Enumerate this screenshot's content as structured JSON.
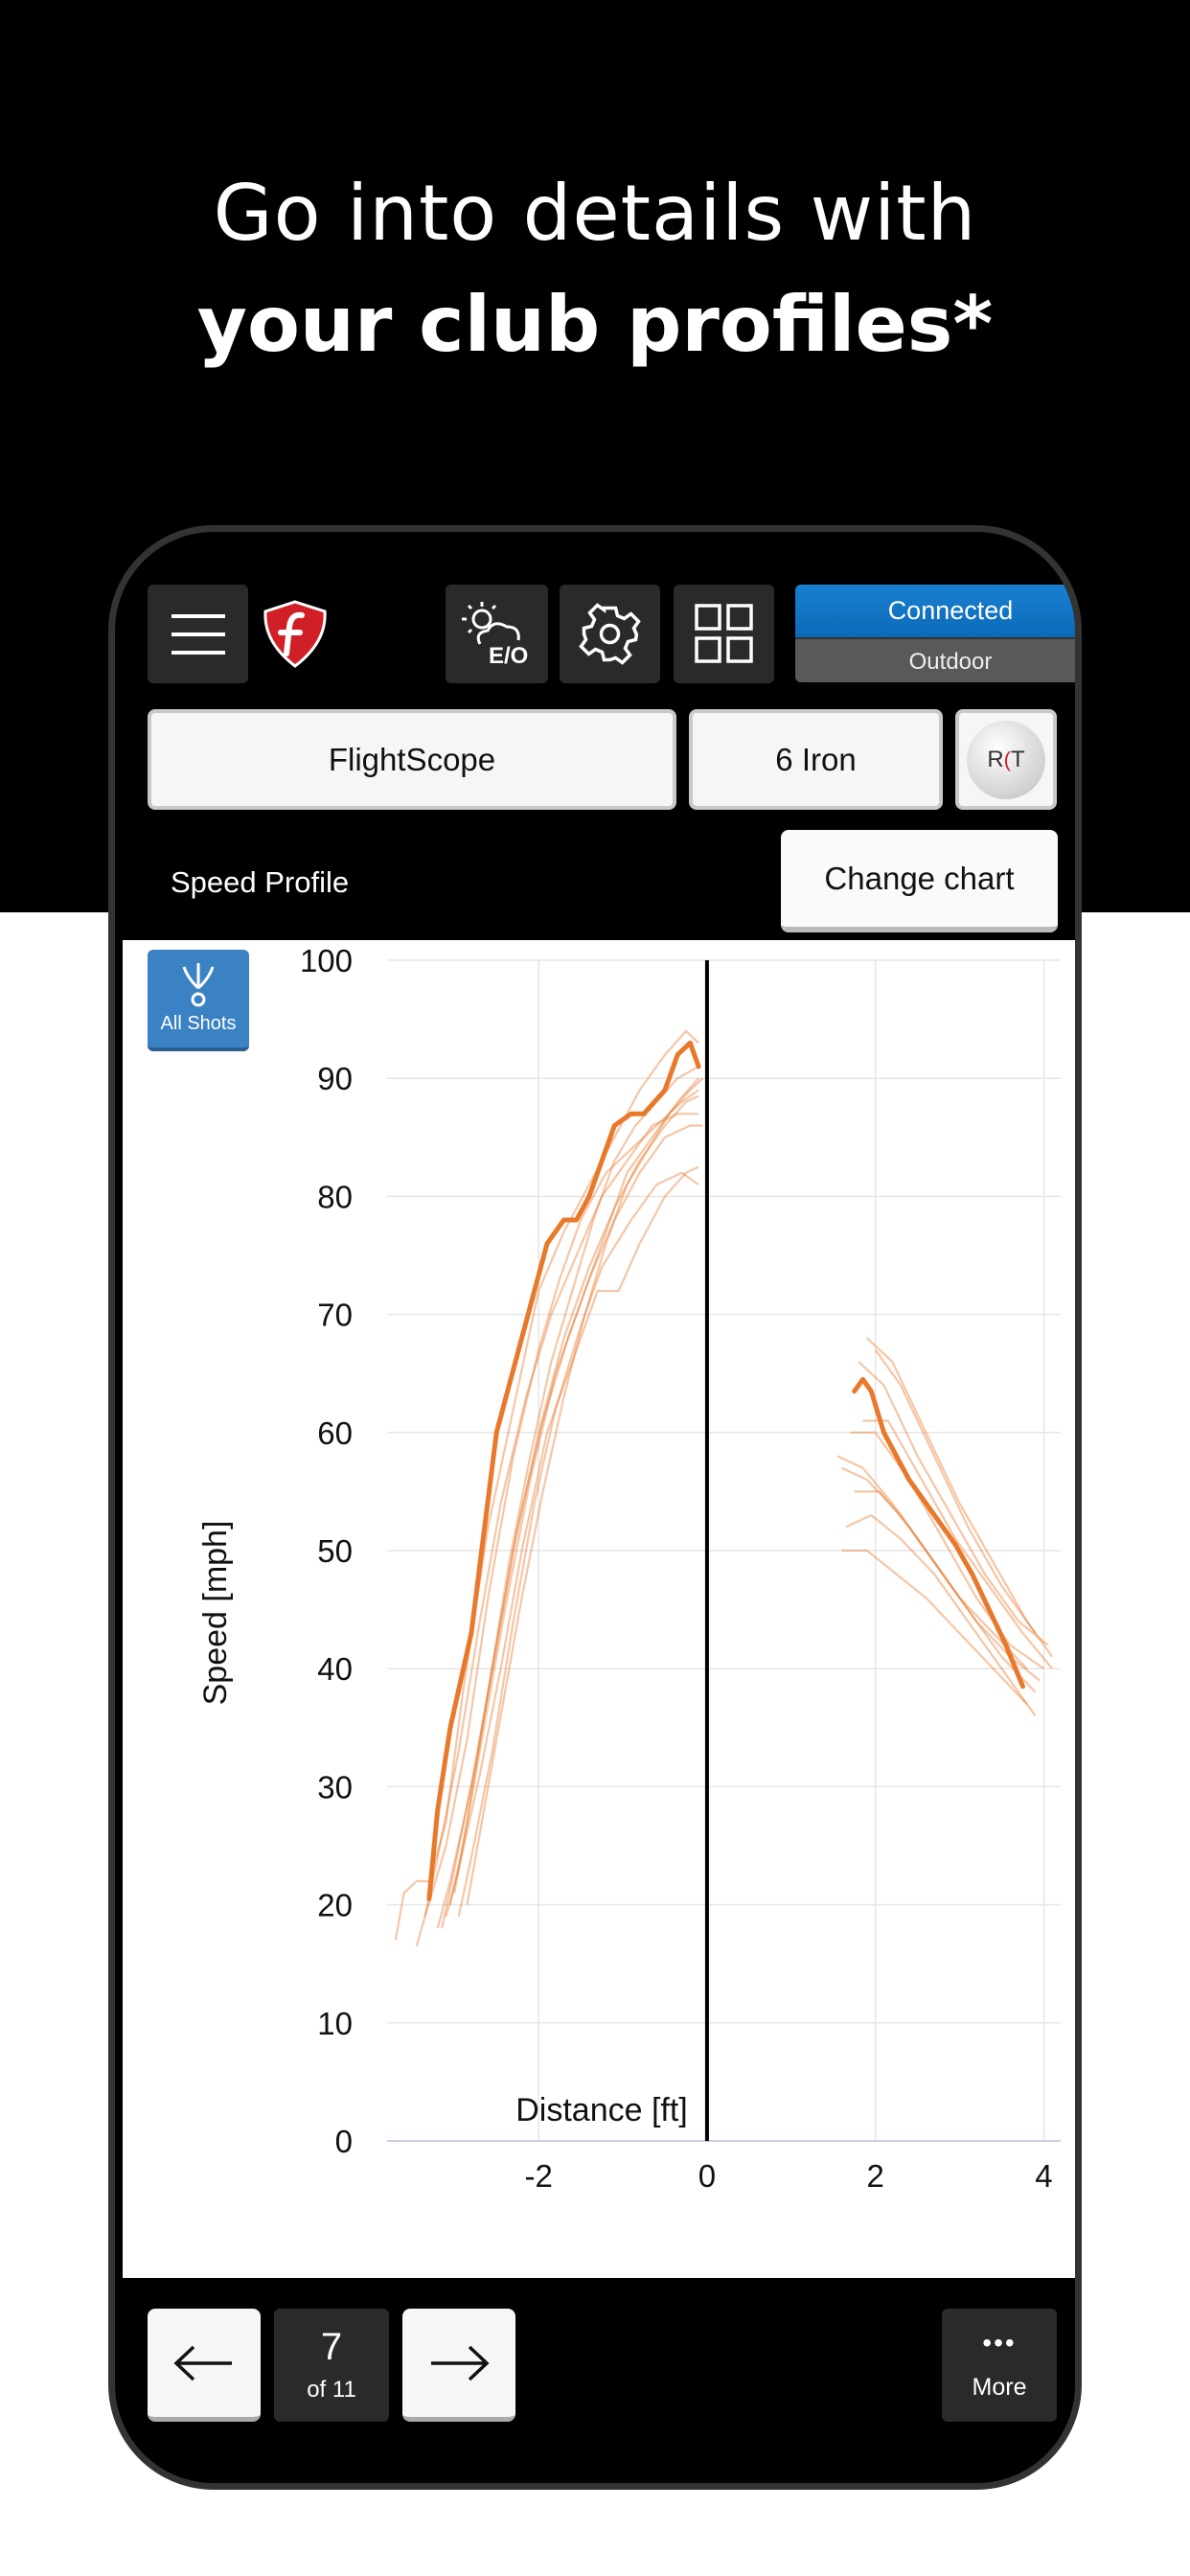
{
  "headline": {
    "line1": "Go into details with",
    "line2": "your club profiles*"
  },
  "toolbar": {
    "weather_label": "E/O",
    "connection_status": "Connected",
    "environment": "Outdoor"
  },
  "selectors": {
    "device": "FlightScope",
    "club": "6 Iron",
    "ball_label_left": "R",
    "ball_label_right": "T"
  },
  "chart_header": {
    "title": "Speed Profile",
    "change_button": "Change chart"
  },
  "filter": {
    "label": "All Shots"
  },
  "chart_data": {
    "type": "line",
    "xlabel": "Distance [ft]",
    "ylabel": "Speed [mph]",
    "xlim": [
      -3.8,
      4.2
    ],
    "ylim": [
      0,
      100
    ],
    "x_ticks": [
      -2,
      0,
      2,
      4
    ],
    "y_ticks": [
      0,
      10,
      20,
      30,
      40,
      50,
      60,
      70,
      80,
      90,
      100
    ],
    "grid": true,
    "accent_color": "#e8782a",
    "selected_shot": {
      "segments": [
        [
          [
            -3.3,
            20.5
          ],
          [
            -3.2,
            28
          ],
          [
            -3.05,
            35
          ],
          [
            -2.8,
            43
          ],
          [
            -2.5,
            60
          ],
          [
            -2.2,
            68
          ],
          [
            -1.9,
            76
          ],
          [
            -1.7,
            78
          ],
          [
            -1.55,
            78
          ],
          [
            -1.4,
            80
          ],
          [
            -1.1,
            86
          ],
          [
            -0.9,
            87
          ],
          [
            -0.75,
            87
          ],
          [
            -0.5,
            89
          ],
          [
            -0.35,
            92
          ],
          [
            -0.2,
            93
          ],
          [
            -0.1,
            91
          ]
        ],
        [
          [
            1.75,
            63.5
          ],
          [
            1.85,
            64.5
          ],
          [
            1.95,
            63.5
          ],
          [
            2.1,
            60
          ],
          [
            2.4,
            56
          ],
          [
            2.7,
            53
          ],
          [
            2.95,
            50.5
          ],
          [
            3.15,
            48
          ],
          [
            3.35,
            45
          ],
          [
            3.55,
            42
          ],
          [
            3.75,
            38.5
          ]
        ]
      ]
    },
    "other_shots": [
      {
        "segments": [
          [
            [
              -3.7,
              17
            ],
            [
              -3.6,
              21
            ],
            [
              -3.45,
              22
            ],
            [
              -3.3,
              22
            ],
            [
              -3.1,
              27
            ],
            [
              -2.9,
              38
            ],
            [
              -2.6,
              52
            ],
            [
              -2.3,
              62
            ],
            [
              -2.0,
              72
            ],
            [
              -1.7,
              77
            ],
            [
              -1.4,
              81
            ],
            [
              -1.1,
              85
            ],
            [
              -0.8,
              89
            ],
            [
              -0.5,
              92
            ],
            [
              -0.25,
              94
            ],
            [
              -0.1,
              93
            ]
          ],
          [
            [
              1.9,
              68
            ],
            [
              2.2,
              66
            ],
            [
              2.6,
              60
            ],
            [
              3.0,
              54
            ],
            [
              3.4,
              49
            ],
            [
              3.8,
              44
            ],
            [
              4.1,
              41
            ]
          ]
        ]
      },
      {
        "segments": [
          [
            [
              -3.45,
              16.5
            ],
            [
              -3.35,
              19
            ],
            [
              -3.1,
              25
            ],
            [
              -2.85,
              34
            ],
            [
              -2.6,
              46
            ],
            [
              -2.3,
              58
            ],
            [
              -2.0,
              67
            ],
            [
              -1.75,
              73
            ],
            [
              -1.5,
              78
            ],
            [
              -1.2,
              82
            ],
            [
              -0.9,
              84
            ],
            [
              -0.6,
              86
            ],
            [
              -0.3,
              88
            ],
            [
              -0.1,
              89
            ]
          ],
          [
            [
              1.6,
              57
            ],
            [
              1.9,
              56
            ],
            [
              2.3,
              53
            ],
            [
              2.7,
              49
            ],
            [
              3.1,
              45
            ],
            [
              3.5,
              41
            ],
            [
              3.9,
              38
            ]
          ]
        ]
      },
      {
        "segments": [
          [
            [
              -3.2,
              18
            ],
            [
              -3.05,
              22
            ],
            [
              -2.8,
              30
            ],
            [
              -2.55,
              40
            ],
            [
              -2.3,
              50
            ],
            [
              -2.0,
              60
            ],
            [
              -1.7,
              68
            ],
            [
              -1.4,
              74
            ],
            [
              -1.1,
              79
            ],
            [
              -0.8,
              83
            ],
            [
              -0.5,
              86
            ],
            [
              -0.25,
              88
            ],
            [
              -0.1,
              88.5
            ]
          ],
          [
            [
              1.65,
              52
            ],
            [
              1.95,
              53
            ],
            [
              2.3,
              51
            ],
            [
              2.7,
              48
            ],
            [
              3.1,
              44
            ],
            [
              3.5,
              40
            ],
            [
              3.9,
              36
            ]
          ]
        ]
      },
      {
        "segments": [
          [
            [
              -3.1,
              19
            ],
            [
              -2.95,
              23
            ],
            [
              -2.7,
              31
            ],
            [
              -2.45,
              40
            ],
            [
              -2.2,
              50
            ],
            [
              -1.9,
              60
            ],
            [
              -1.6,
              66
            ],
            [
              -1.3,
              72
            ],
            [
              -1.05,
              72
            ],
            [
              -0.8,
              76
            ],
            [
              -0.5,
              80
            ],
            [
              -0.25,
              82
            ],
            [
              -0.1,
              82.5
            ]
          ],
          [
            [
              1.8,
              66
            ],
            [
              2.1,
              64
            ],
            [
              2.5,
              58
            ],
            [
              2.9,
              53
            ],
            [
              3.3,
              48
            ],
            [
              3.7,
              44
            ],
            [
              4.05,
              42
            ]
          ]
        ]
      },
      {
        "segments": [
          [
            [
              -3.05,
              20
            ],
            [
              -2.9,
              25
            ],
            [
              -2.65,
              35
            ],
            [
              -2.4,
              45
            ],
            [
              -2.1,
              56
            ],
            [
              -1.8,
              65
            ],
            [
              -1.5,
              71
            ],
            [
              -1.2,
              77
            ],
            [
              -0.95,
              82
            ],
            [
              -0.65,
              85
            ],
            [
              -0.35,
              88
            ],
            [
              -0.1,
              90
            ]
          ],
          [
            [
              1.7,
              60
            ],
            [
              2.0,
              60
            ],
            [
              2.4,
              56
            ],
            [
              2.8,
              51
            ],
            [
              3.2,
              46
            ],
            [
              3.6,
              42
            ],
            [
              4.0,
              40
            ]
          ]
        ]
      },
      {
        "segments": [
          [
            [
              -2.95,
              19
            ],
            [
              -2.8,
              24
            ],
            [
              -2.55,
              33
            ],
            [
              -2.3,
              44
            ],
            [
              -2.05,
              54
            ],
            [
              -1.8,
              62
            ],
            [
              -1.5,
              69
            ],
            [
              -1.25,
              74
            ],
            [
              -0.9,
              78
            ],
            [
              -0.6,
              81
            ],
            [
              -0.3,
              82
            ],
            [
              -0.1,
              81
            ]
          ],
          [
            [
              1.55,
              58
            ],
            [
              1.85,
              57
            ],
            [
              2.2,
              54
            ],
            [
              2.6,
              50
            ],
            [
              3.0,
              46
            ],
            [
              3.4,
              43
            ],
            [
              3.8,
              40
            ]
          ]
        ]
      },
      {
        "segments": [
          [
            [
              -2.85,
              20
            ],
            [
              -2.7,
              26
            ],
            [
              -2.45,
              36
            ],
            [
              -2.2,
              46
            ],
            [
              -1.95,
              55
            ],
            [
              -1.7,
              63
            ],
            [
              -1.45,
              70
            ],
            [
              -1.2,
              76
            ],
            [
              -0.95,
              81
            ],
            [
              -0.7,
              84
            ],
            [
              -0.45,
              87
            ],
            [
              -0.2,
              89
            ],
            [
              -0.05,
              90
            ]
          ],
          [
            [
              1.6,
              50
            ],
            [
              1.9,
              50
            ],
            [
              2.25,
              48
            ],
            [
              2.6,
              46
            ],
            [
              3.0,
              43
            ],
            [
              3.4,
              40
            ],
            [
              3.8,
              37
            ]
          ]
        ]
      },
      {
        "segments": [
          [
            [
              -3.0,
              21
            ],
            [
              -2.85,
              27
            ],
            [
              -2.6,
              38
            ],
            [
              -2.35,
              49
            ],
            [
              -2.1,
              58
            ],
            [
              -1.85,
              66
            ],
            [
              -1.6,
              72
            ],
            [
              -1.35,
              78
            ],
            [
              -1.1,
              83
            ],
            [
              -0.85,
              86
            ],
            [
              -0.6,
              88
            ],
            [
              -0.35,
              90
            ],
            [
              -0.1,
              91
            ]
          ],
          [
            [
              2.0,
              67
            ],
            [
              2.3,
              64
            ],
            [
              2.7,
              58
            ],
            [
              3.1,
              52
            ],
            [
              3.5,
              47
            ],
            [
              3.9,
              43
            ]
          ]
        ]
      },
      {
        "segments": [
          [
            [
              -3.15,
              18
            ],
            [
              -3.0,
              23
            ],
            [
              -2.75,
              32
            ],
            [
              -2.5,
              42
            ],
            [
              -2.25,
              52
            ],
            [
              -1.95,
              61
            ],
            [
              -1.65,
              68
            ],
            [
              -1.4,
              73
            ],
            [
              -1.1,
              78
            ],
            [
              -0.8,
              82
            ],
            [
              -0.5,
              85
            ],
            [
              -0.2,
              86
            ],
            [
              -0.05,
              86
            ]
          ],
          [
            [
              1.75,
              55
            ],
            [
              2.05,
              55
            ],
            [
              2.4,
              52
            ],
            [
              2.8,
              48
            ],
            [
              3.2,
              44
            ],
            [
              3.6,
              41
            ],
            [
              3.95,
              39
            ]
          ]
        ]
      },
      {
        "segments": [
          [
            [
              -3.35,
              19
            ],
            [
              -3.2,
              24
            ],
            [
              -2.95,
              33
            ],
            [
              -2.7,
              44
            ],
            [
              -2.45,
              54
            ],
            [
              -2.15,
              63
            ],
            [
              -1.85,
              70
            ],
            [
              -1.55,
              75
            ],
            [
              -1.25,
              80
            ],
            [
              -0.95,
              83
            ],
            [
              -0.65,
              86
            ],
            [
              -0.35,
              87
            ],
            [
              -0.1,
              87
            ]
          ],
          [
            [
              1.85,
              61
            ],
            [
              2.15,
              61
            ],
            [
              2.55,
              56
            ],
            [
              2.95,
              51
            ],
            [
              3.35,
              47
            ],
            [
              3.75,
              43
            ],
            [
              4.1,
              40
            ]
          ]
        ]
      }
    ]
  },
  "navigation": {
    "shot_number": "7",
    "shot_total": "of 11",
    "more_label": "More",
    "more_glyph": "•••"
  }
}
